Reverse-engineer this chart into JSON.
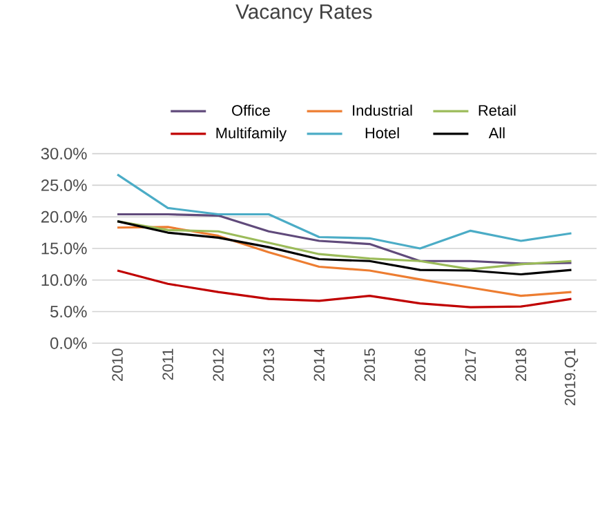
{
  "chart_data": {
    "type": "line",
    "title": "Vacancy Rates",
    "categories": [
      "2010",
      "2011",
      "2012",
      "2013",
      "2014",
      "2015",
      "2016",
      "2017",
      "2018",
      "2019.Q1"
    ],
    "series": [
      {
        "name": "Office",
        "color": "#604a7b",
        "values": [
          20.4,
          20.4,
          20.2,
          17.7,
          16.2,
          15.7,
          13.0,
          13.0,
          12.6,
          12.7
        ]
      },
      {
        "name": "Industrial",
        "color": "#ed7d31",
        "values": [
          18.3,
          18.4,
          17.0,
          14.4,
          12.1,
          11.5,
          10.1,
          8.8,
          7.5,
          8.1
        ]
      },
      {
        "name": "Retail",
        "color": "#9bbb59",
        "values": [
          19.3,
          17.9,
          17.7,
          15.9,
          14.1,
          13.4,
          13.0,
          11.7,
          12.5,
          13.0
        ]
      },
      {
        "name": "Multifamily",
        "color": "#c00000",
        "values": [
          11.5,
          9.4,
          8.1,
          7.0,
          6.7,
          7.5,
          6.3,
          5.7,
          5.8,
          7.0
        ]
      },
      {
        "name": "Hotel",
        "color": "#4bacc6",
        "values": [
          26.7,
          21.4,
          20.4,
          20.4,
          16.8,
          16.6,
          15.0,
          17.8,
          16.2,
          17.4
        ]
      },
      {
        "name": "All",
        "color": "#000000",
        "values": [
          19.3,
          17.5,
          16.7,
          15.2,
          13.3,
          13.0,
          11.6,
          11.5,
          10.9,
          11.6
        ]
      }
    ],
    "ylim": [
      0,
      30
    ],
    "yticks": [
      {
        "value": 0,
        "label": "0.0%"
      },
      {
        "value": 5,
        "label": "5.0%"
      },
      {
        "value": 10,
        "label": "10.0%"
      },
      {
        "value": 15,
        "label": "15.0%"
      },
      {
        "value": 20,
        "label": "20.0%"
      },
      {
        "value": 25,
        "label": "25.0%"
      },
      {
        "value": 30,
        "label": "30.0%"
      }
    ],
    "grid": "y",
    "legend": "top",
    "marker": "none",
    "line_style": "solid"
  }
}
